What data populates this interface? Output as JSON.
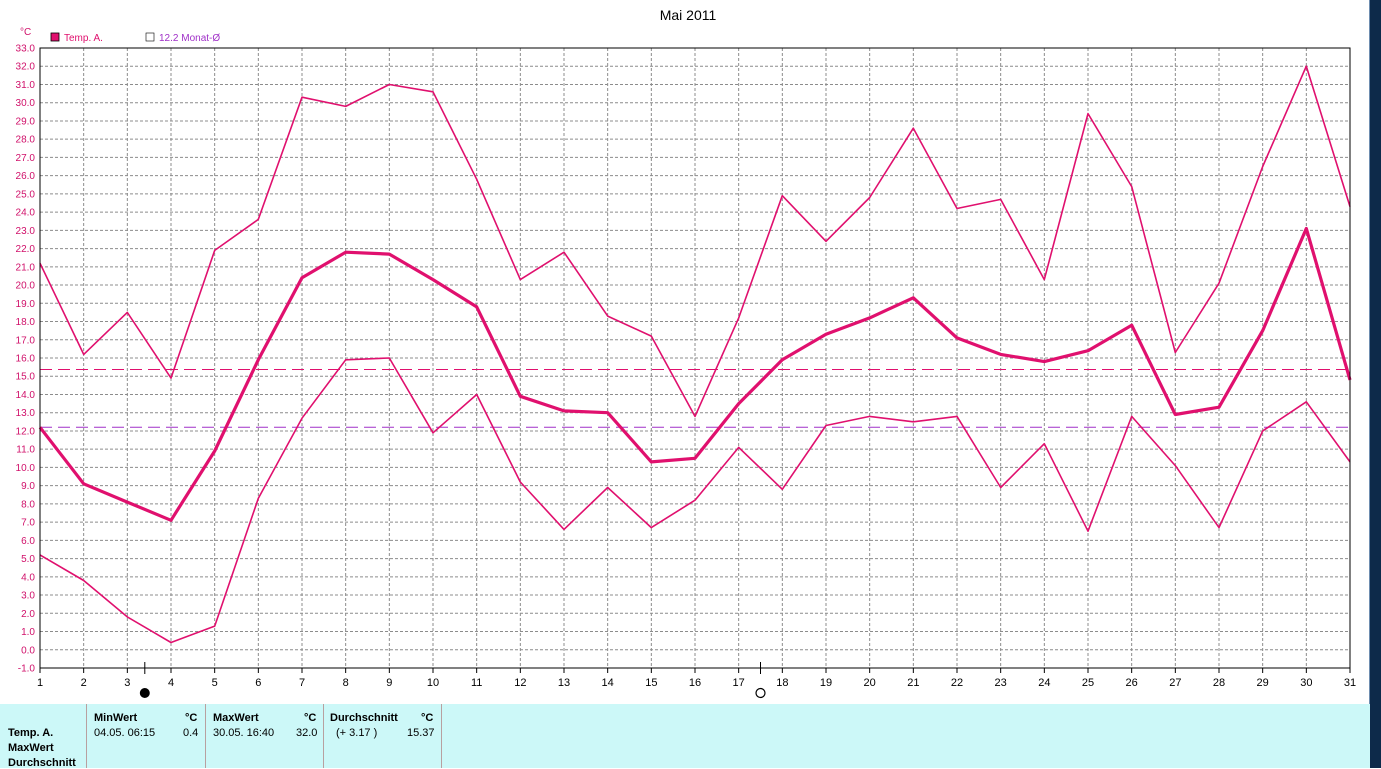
{
  "chart_data": {
    "type": "line",
    "title": "Mai 2011",
    "ylabel": "°C",
    "ylim": [
      -1.0,
      33.0
    ],
    "ytick_step": 1.0,
    "grid": true,
    "legend_position": "top-left",
    "x": [
      1,
      2,
      3,
      4,
      5,
      6,
      7,
      8,
      9,
      10,
      11,
      12,
      13,
      14,
      15,
      16,
      17,
      18,
      19,
      20,
      21,
      22,
      23,
      24,
      25,
      26,
      27,
      28,
      29,
      30,
      31
    ],
    "series": [
      {
        "name": "Temp. A.",
        "role": "max",
        "color": "#e0106e",
        "width": 1.6,
        "values": [
          21.2,
          16.2,
          18.5,
          14.9,
          21.9,
          23.6,
          30.3,
          29.8,
          31.0,
          30.6,
          25.8,
          20.3,
          21.8,
          18.3,
          17.2,
          12.8,
          18.2,
          24.9,
          22.4,
          24.8,
          28.6,
          24.2,
          24.7,
          20.3,
          29.4,
          25.4,
          16.3,
          20.1,
          26.5,
          32.0,
          24.3
        ]
      },
      {
        "name": "Temp. A.",
        "role": "avg",
        "color": "#e0106e",
        "width": 3.2,
        "values": [
          12.2,
          9.1,
          8.1,
          7.1,
          10.9,
          15.9,
          20.4,
          21.8,
          21.7,
          20.3,
          18.8,
          13.9,
          13.1,
          13.0,
          10.3,
          10.5,
          13.5,
          15.9,
          17.3,
          18.2,
          19.3,
          17.1,
          16.2,
          15.8,
          16.4,
          17.8,
          12.9,
          13.3,
          17.5,
          23.1,
          14.8
        ]
      },
      {
        "name": "Temp. A.",
        "role": "min",
        "color": "#e0106e",
        "width": 1.6,
        "values": [
          5.2,
          3.8,
          1.8,
          0.4,
          1.3,
          8.3,
          12.7,
          15.9,
          16.0,
          11.9,
          14.0,
          9.2,
          6.6,
          8.9,
          6.7,
          8.2,
          11.1,
          8.8,
          12.3,
          12.8,
          12.5,
          12.8,
          8.9,
          11.3,
          6.5,
          12.8,
          10.1,
          6.7,
          12.0,
          13.6,
          10.3
        ]
      }
    ],
    "reference_lines": [
      {
        "value": 15.37,
        "color": "#e0106e"
      },
      {
        "value": 12.2,
        "color": "#a030c8"
      }
    ],
    "legend": [
      {
        "label": "Temp. A.",
        "color": "#e0106e",
        "filled": true
      },
      {
        "label": "12.2 Monat-Ø",
        "color": "#a030c8",
        "filled": false
      }
    ],
    "moon_phases": [
      {
        "day": 3.4,
        "phase": "new"
      },
      {
        "day": 17.5,
        "phase": "full"
      }
    ]
  },
  "stats": {
    "row_labels": [
      "Temp. A.",
      "MaxWert",
      "Durchschnitt"
    ],
    "min": {
      "header": "MinWert",
      "unit": "°C",
      "datetime": "04.05.  06:15",
      "value": "0.4"
    },
    "max": {
      "header": "MaxWert",
      "unit": "°C",
      "datetime": "30.05.  16:40",
      "value": "32.0"
    },
    "avg": {
      "header": "Durchschnitt",
      "unit": "°C",
      "delta": "(+ 3.17 )",
      "value": "15.37"
    }
  }
}
